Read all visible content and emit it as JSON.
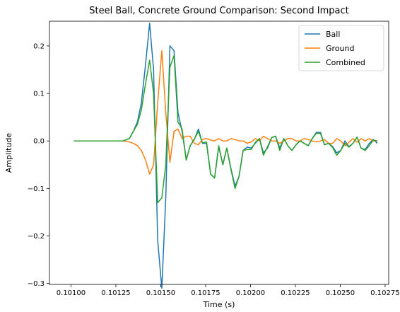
{
  "chart_data": {
    "type": "line",
    "title": "Steel Ball, Concrete Ground Comparison: Second Impact",
    "xlabel": "Time (s)",
    "ylabel": "Amplitude",
    "xlim": [
      0.10088,
      0.10277
    ],
    "ylim": [
      -0.302,
      0.252
    ],
    "xticks": [
      0.101,
      0.10125,
      0.1015,
      0.10175,
      0.102,
      0.10225,
      0.1025,
      0.10275
    ],
    "xtick_labels": [
      "0.10100",
      "0.10125",
      "0.10150",
      "0.10175",
      "0.10200",
      "0.10225",
      "0.10250",
      "0.10275"
    ],
    "yticks": [
      -0.3,
      -0.2,
      -0.1,
      0.0,
      0.1,
      0.2
    ],
    "ytick_labels": [
      "−0.3",
      "−0.2",
      "−0.1",
      "0.0",
      "0.1",
      "0.2"
    ],
    "grid": false,
    "legend_position": "top-right",
    "x": [
      0.101015,
      0.10129,
      0.101325,
      0.101347,
      0.10137,
      0.101392,
      0.101415,
      0.101438,
      0.10146,
      0.101483,
      0.101506,
      0.101528,
      0.101551,
      0.101574,
      0.101596,
      0.101619,
      0.101642,
      0.101664,
      0.101687,
      0.10171,
      0.101732,
      0.101755,
      0.101778,
      0.1018,
      0.101823,
      0.101846,
      0.101868,
      0.101891,
      0.101914,
      0.101936,
      0.101959,
      0.101982,
      0.102004,
      0.102027,
      0.10205,
      0.102072,
      0.102095,
      0.102118,
      0.10214,
      0.102163,
      0.102186,
      0.102208,
      0.102231,
      0.102254,
      0.102276,
      0.102299,
      0.102322,
      0.102344,
      0.102367,
      0.10239,
      0.102412,
      0.102435,
      0.102458,
      0.10248,
      0.102503,
      0.102526,
      0.102548,
      0.102571,
      0.102594,
      0.102616,
      0.102639,
      0.102662,
      0.102684,
      0.102707
    ],
    "series": [
      {
        "name": "Ball",
        "color": "#1f77b4",
        "values": [
          0.0,
          0.0,
          0.005,
          0.02,
          0.04,
          0.08,
          0.16,
          0.248,
          0.15,
          -0.21,
          -0.31,
          -0.12,
          0.2,
          0.19,
          0.06,
          0.02,
          -0.04,
          -0.01,
          0.003,
          0.025,
          -0.005,
          -0.005,
          -0.07,
          -0.078,
          -0.012,
          -0.05,
          -0.015,
          -0.058,
          -0.095,
          -0.075,
          -0.02,
          -0.013,
          -0.015,
          -0.005,
          0.005,
          -0.025,
          -0.015,
          0.007,
          0.01,
          -0.015,
          0.005,
          -0.01,
          -0.02,
          -0.008,
          0.0,
          -0.005,
          -0.01,
          0.005,
          0.018,
          0.018,
          -0.008,
          -0.005,
          -0.012,
          -0.025,
          -0.02,
          0.0,
          -0.012,
          -0.005,
          0.008,
          -0.015,
          -0.018,
          -0.005,
          0.003,
          -0.005
        ]
      },
      {
        "name": "Ground",
        "color": "#ff7f0e",
        "values": [
          0.0,
          0.0,
          -0.002,
          -0.005,
          -0.01,
          -0.02,
          -0.04,
          -0.07,
          -0.05,
          0.08,
          0.19,
          0.06,
          -0.045,
          0.02,
          0.025,
          0.005,
          0.01,
          0.01,
          -0.005,
          -0.008,
          0.003,
          0.005,
          0.002,
          0.0,
          0.005,
          0.0,
          0.0,
          0.005,
          0.003,
          0.0,
          0.0,
          -0.005,
          -0.002,
          0.005,
          0.0,
          0.01,
          0.005,
          0.0,
          0.0,
          -0.005,
          0.0,
          0.005,
          0.005,
          0.0,
          0.0,
          0.005,
          0.003,
          0.0,
          -0.002,
          0.0,
          0.003,
          -0.005,
          -0.005,
          0.005,
          0.0,
          -0.01,
          -0.003,
          0.005,
          -0.003,
          0.005,
          0.0,
          0.005,
          0.0,
          0.0
        ]
      },
      {
        "name": "Combined",
        "color": "#2ca02c",
        "values": [
          0.0,
          0.0,
          0.005,
          0.02,
          0.035,
          0.065,
          0.12,
          0.17,
          0.1,
          -0.13,
          -0.12,
          -0.05,
          0.155,
          0.18,
          0.04,
          0.025,
          -0.04,
          -0.01,
          0.004,
          0.02,
          -0.004,
          -0.002,
          -0.07,
          -0.078,
          -0.01,
          -0.05,
          -0.015,
          -0.06,
          -0.1,
          -0.075,
          -0.02,
          -0.018,
          -0.018,
          -0.003,
          0.005,
          -0.03,
          -0.012,
          0.007,
          0.01,
          -0.02,
          0.005,
          -0.01,
          -0.02,
          -0.008,
          0.0,
          -0.005,
          -0.01,
          0.005,
          0.016,
          0.016,
          -0.008,
          -0.005,
          -0.014,
          -0.03,
          -0.02,
          -0.005,
          -0.013,
          -0.005,
          0.008,
          -0.015,
          -0.02,
          -0.01,
          0.002,
          0.0
        ]
      }
    ]
  }
}
